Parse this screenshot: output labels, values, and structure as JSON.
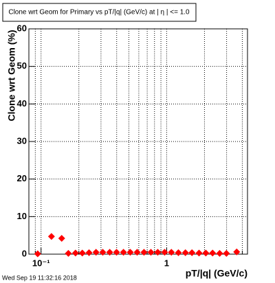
{
  "chart_data": {
    "type": "scatter",
    "title": "Clone wrt Geom for Primary vs pT/|q| (GeV/c) at | η | <= 1.0",
    "x_label": "pT/|q| (GeV/c)",
    "y_label": "Clone wrt Geom (%)",
    "timestamp": "Wed Sep 19 11:32:16 2018",
    "log_x": true,
    "grid": true,
    "xlim": [
      0.08,
      4.4
    ],
    "ylim": [
      0,
      60
    ],
    "xticks": [
      {
        "value": 0.1,
        "label": "10⁻¹"
      },
      1
    ],
    "xminorticks": [
      0.09,
      0.2,
      0.3,
      0.4,
      0.5,
      0.6,
      0.7,
      0.8,
      0.9,
      2,
      3,
      4
    ],
    "yticks": [
      0,
      10,
      20,
      30,
      40,
      50,
      60
    ],
    "series": [
      {
        "color": "#ff0000",
        "x": [
          0.094,
          0.121,
          0.146,
          0.165,
          0.188,
          0.213,
          0.241,
          0.274,
          0.31,
          0.352,
          0.399,
          0.453,
          0.513,
          0.582,
          0.66,
          0.749,
          0.849,
          0.963,
          1.09,
          1.24,
          1.41,
          1.59,
          1.81,
          2.05,
          2.32,
          2.64,
          2.99,
          3.61
        ],
        "values": [
          0.1,
          4.7,
          4.2,
          0.2,
          0.3,
          0.3,
          0.4,
          0.5,
          0.5,
          0.5,
          0.5,
          0.5,
          0.5,
          0.5,
          0.5,
          0.5,
          0.5,
          0.5,
          0.5,
          0.4,
          0.4,
          0.4,
          0.3,
          0.3,
          0.3,
          0.2,
          0.2,
          0.6
        ]
      }
    ]
  }
}
